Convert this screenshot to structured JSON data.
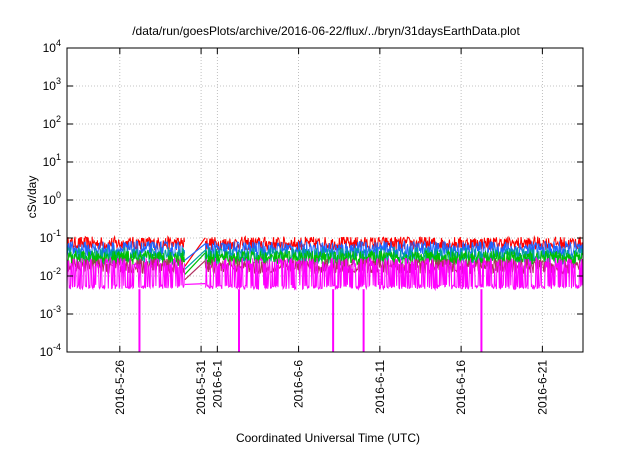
{
  "chart_data": {
    "type": "line",
    "title": "/data/run/goesPlots/archive/2016-06-22/flux/../bryn/31daysEarthData.plot",
    "xlabel": "Coordinated Universal Time (UTC)",
    "ylabel": "cSv/day",
    "y_scale": "log",
    "ylim": [
      0.0001,
      10000
    ],
    "xlim": [
      "2016-05-22T18:00",
      "2016-06-23T12:00"
    ],
    "grid": true,
    "legend": "none",
    "x_ticks": [
      {
        "value": "2016-05-26",
        "label": "2016-5-26"
      },
      {
        "value": "2016-05-31",
        "label": "2016-5-31"
      },
      {
        "value": "2016-06-01",
        "label": "2016-6-1"
      },
      {
        "value": "2016-06-06",
        "label": "2016-6-6"
      },
      {
        "value": "2016-06-11",
        "label": "2016-6-11"
      },
      {
        "value": "2016-06-16",
        "label": "2016-6-16"
      },
      {
        "value": "2016-06-21",
        "label": "2016-6-21"
      }
    ],
    "y_ticks": [
      {
        "value": 0.0001,
        "base": "10",
        "exp": "-4"
      },
      {
        "value": 0.001,
        "base": "10",
        "exp": "-3"
      },
      {
        "value": 0.01,
        "base": "10",
        "exp": "-2"
      },
      {
        "value": 0.1,
        "base": "10",
        "exp": "-1"
      },
      {
        "value": 1,
        "base": "10",
        "exp": "0"
      },
      {
        "value": 10,
        "base": "10",
        "exp": "1"
      },
      {
        "value": 100,
        "base": "10",
        "exp": "2"
      },
      {
        "value": 1000,
        "base": "10",
        "exp": "3"
      },
      {
        "value": 10000,
        "base": "10",
        "exp": "4"
      }
    ],
    "data_gap": {
      "start": "2016-05-30T00:00",
      "end": "2016-05-31T06:00"
    },
    "series": [
      {
        "color": "#ff0000",
        "baseline": 0.072,
        "spread": 0.18,
        "floor_at_gap": 0.018,
        "dips": []
      },
      {
        "color": "#1e64ff",
        "baseline": 0.05,
        "spread": 0.22,
        "floor_at_gap": 0.026,
        "dips": []
      },
      {
        "color": "#00a0a0",
        "baseline": 0.034,
        "spread": 0.22,
        "floor_at_gap": 0.015,
        "dips": []
      },
      {
        "color": "#00c000",
        "baseline": 0.029,
        "spread": 0.2,
        "floor_at_gap": 0.011,
        "dips": []
      },
      {
        "color": "#b03060",
        "baseline": 0.018,
        "spread": 0.2,
        "floor_at_gap": 0.008,
        "dips": []
      },
      {
        "color": "#ff00ff",
        "baseline": 0.0045,
        "top": 0.03,
        "floor_at_gap": 0.006,
        "dips": [
          "2016-05-27T05:00",
          "2016-06-02T08:00",
          "2016-06-08T03:00",
          "2016-06-10T00:00",
          "2016-06-17T06:00"
        ]
      }
    ]
  }
}
